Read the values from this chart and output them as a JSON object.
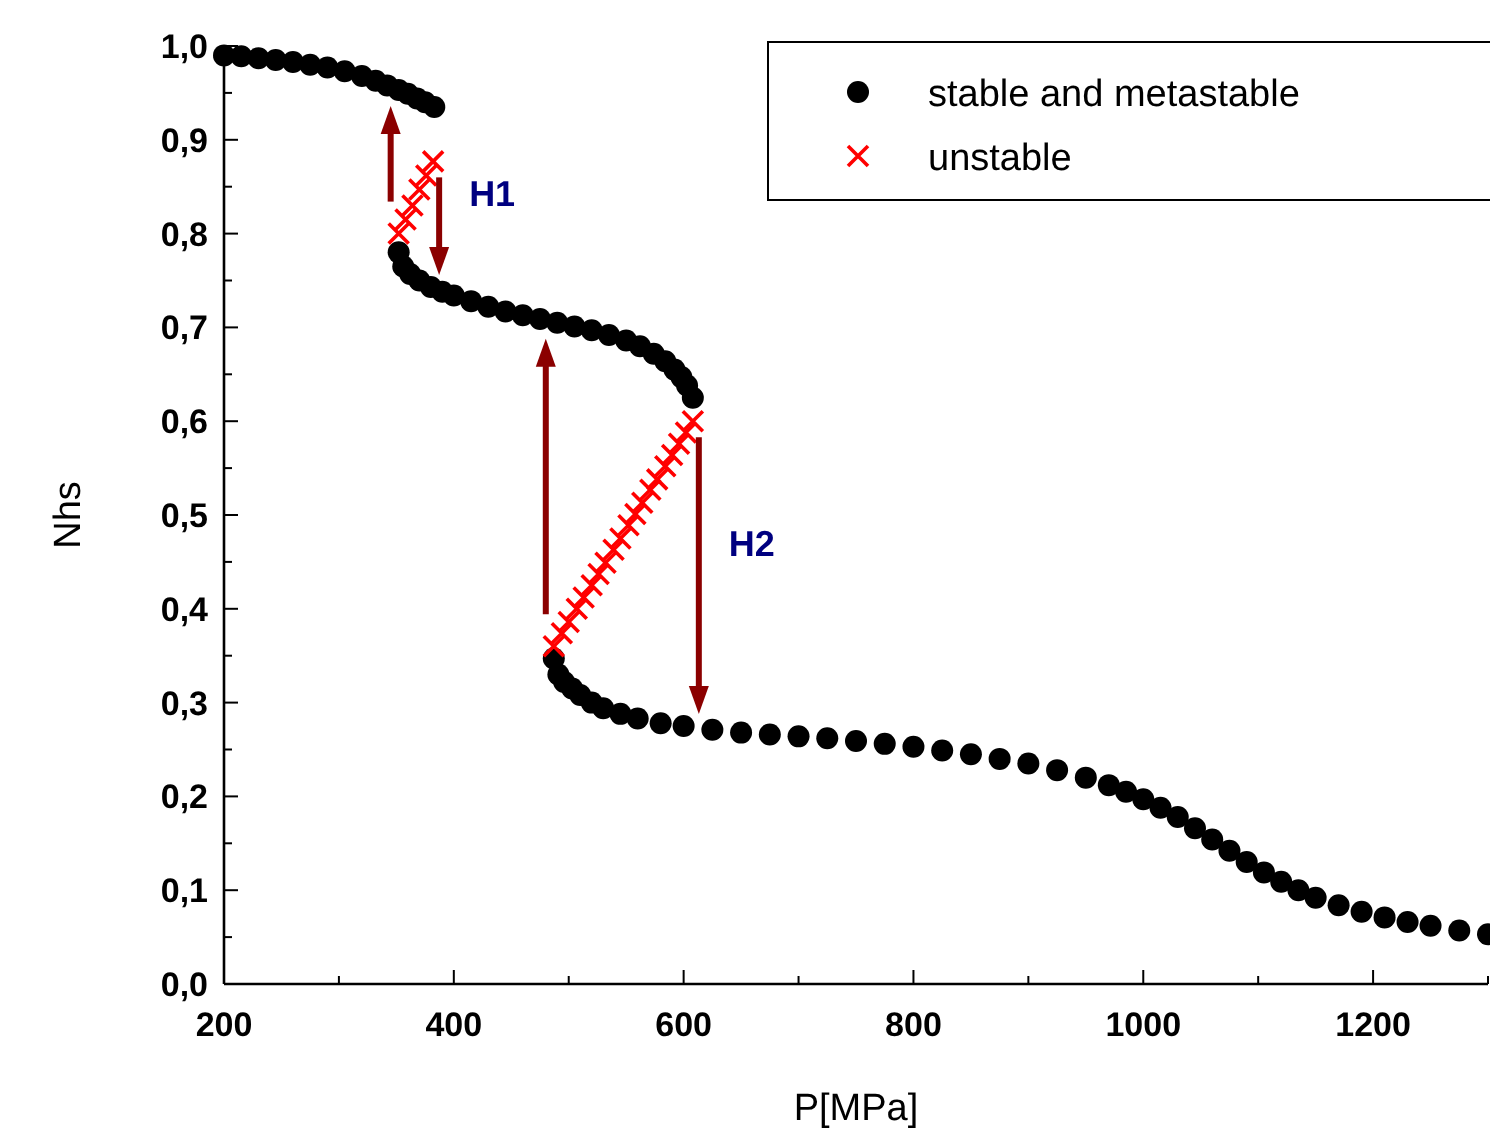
{
  "chart_data": {
    "type": "scatter",
    "xlabel": "P[MPa]",
    "ylabel": "Nhs",
    "xlim": [
      200,
      1300
    ],
    "ylim": [
      0,
      1
    ],
    "xticks": [
      200,
      {
        "value": 300,
        "label": null
      },
      400,
      {
        "value": 500,
        "label": null
      },
      600,
      {
        "value": 700,
        "label": null
      },
      800,
      {
        "value": 900,
        "label": null
      },
      1000,
      {
        "value": 1100,
        "label": null
      },
      1200,
      {
        "value": 1300,
        "label": null
      }
    ],
    "yticks": [
      {
        "value": 0,
        "label": "0,0"
      },
      {
        "value": 0.05,
        "label": null
      },
      {
        "value": 0.1,
        "label": "0,1"
      },
      {
        "value": 0.15,
        "label": null
      },
      {
        "value": 0.2,
        "label": "0,2"
      },
      {
        "value": 0.25,
        "label": null
      },
      {
        "value": 0.3,
        "label": "0,3"
      },
      {
        "value": 0.35,
        "label": null
      },
      {
        "value": 0.4,
        "label": "0,4"
      },
      {
        "value": 0.45,
        "label": null
      },
      {
        "value": 0.5,
        "label": "0,5"
      },
      {
        "value": 0.55,
        "label": null
      },
      {
        "value": 0.6,
        "label": "0,6"
      },
      {
        "value": 0.65,
        "label": null
      },
      {
        "value": 0.7,
        "label": "0,7"
      },
      {
        "value": 0.75,
        "label": null
      },
      {
        "value": 0.8,
        "label": "0,8"
      },
      {
        "value": 0.85,
        "label": null
      },
      {
        "value": 0.9,
        "label": "0,9"
      },
      {
        "value": 0.95,
        "label": null
      },
      {
        "value": 1,
        "label": "1,0"
      }
    ],
    "legend": "top right",
    "grid": false,
    "series": [
      {
        "name": "stable and metastable",
        "color": "#000000",
        "marker": "circle",
        "x": [
          200,
          215,
          230,
          245,
          260,
          275,
          290,
          305,
          320,
          332,
          342,
          352,
          360,
          368,
          375,
          383,
          352,
          356,
          362,
          370,
          380,
          390,
          400,
          415,
          430,
          445,
          460,
          475,
          490,
          505,
          520,
          535,
          550,
          562,
          574,
          584,
          592,
          598,
          603,
          608,
          487,
          491,
          496,
          503,
          510,
          520,
          530,
          545,
          560,
          580,
          600,
          625,
          650,
          675,
          700,
          725,
          750,
          775,
          800,
          825,
          850,
          875,
          900,
          925,
          950,
          970,
          985,
          1000,
          1015,
          1030,
          1045,
          1060,
          1075,
          1090,
          1105,
          1120,
          1135,
          1150,
          1170,
          1190,
          1210,
          1230,
          1250,
          1275,
          1300
        ],
        "values": [
          0.99,
          0.989,
          0.987,
          0.985,
          0.983,
          0.98,
          0.977,
          0.973,
          0.968,
          0.963,
          0.958,
          0.953,
          0.949,
          0.944,
          0.94,
          0.935,
          0.78,
          0.765,
          0.757,
          0.75,
          0.743,
          0.738,
          0.734,
          0.728,
          0.722,
          0.717,
          0.713,
          0.709,
          0.705,
          0.701,
          0.697,
          0.692,
          0.686,
          0.68,
          0.672,
          0.664,
          0.655,
          0.647,
          0.638,
          0.625,
          0.347,
          0.33,
          0.322,
          0.315,
          0.308,
          0.3,
          0.294,
          0.288,
          0.283,
          0.278,
          0.275,
          0.271,
          0.268,
          0.266,
          0.264,
          0.262,
          0.259,
          0.256,
          0.253,
          0.249,
          0.245,
          0.24,
          0.235,
          0.228,
          0.22,
          0.212,
          0.205,
          0.197,
          0.188,
          0.178,
          0.166,
          0.154,
          0.142,
          0.13,
          0.119,
          0.109,
          0.1,
          0.092,
          0.084,
          0.077,
          0.071,
          0.066,
          0.062,
          0.057,
          0.053
        ]
      },
      {
        "name": "unstable",
        "color": "#ff0000",
        "marker": "cross",
        "x": [
          352,
          358,
          364,
          370,
          376,
          382,
          null,
          487,
          494,
          500,
          507,
          513,
          520,
          526,
          532,
          539,
          545,
          552,
          558,
          564,
          571,
          577,
          584,
          590,
          596,
          602,
          608
        ],
        "values": [
          0.8,
          0.815,
          0.83,
          0.847,
          0.862,
          0.877,
          null,
          0.36,
          0.374,
          0.386,
          0.4,
          0.412,
          0.425,
          0.437,
          0.449,
          0.463,
          0.475,
          0.489,
          0.501,
          0.513,
          0.527,
          0.538,
          0.552,
          0.564,
          0.576,
          0.588,
          0.6
        ]
      }
    ],
    "annotations": [
      "H1",
      "H2"
    ]
  }
}
